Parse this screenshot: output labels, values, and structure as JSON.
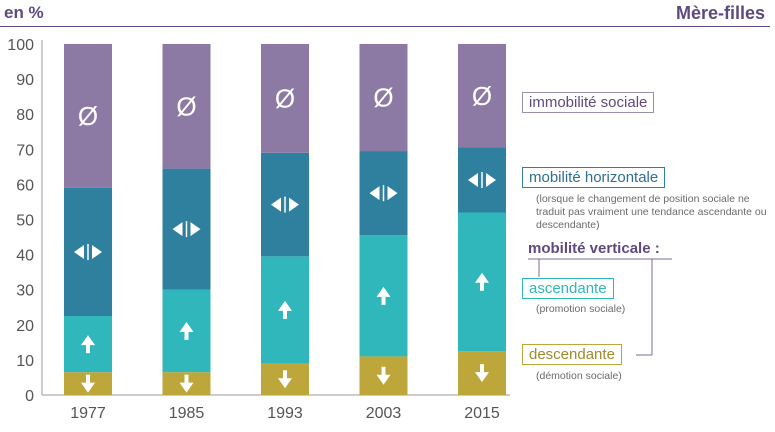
{
  "header": {
    "unit_label": "en %",
    "title": "Mère-filles"
  },
  "chart_data": {
    "type": "bar",
    "stacked": true,
    "categories": [
      "1977",
      "1985",
      "1993",
      "2003",
      "2015"
    ],
    "ylim": [
      0,
      100
    ],
    "yticks": [
      0,
      10,
      20,
      30,
      40,
      50,
      60,
      70,
      80,
      90,
      100
    ],
    "grid": false,
    "legend_position": "right",
    "series": [
      {
        "name": "descendante",
        "color": "#bda63a",
        "symbol": "down-arrow",
        "values": [
          6.5,
          6.5,
          9,
          11,
          12.5
        ]
      },
      {
        "name": "ascendante",
        "color": "#2fb7bb",
        "symbol": "up-arrow",
        "values": [
          16,
          23.5,
          30.5,
          34.5,
          39.5
        ]
      },
      {
        "name": "mobilité horizontale",
        "color": "#2f7f9f",
        "symbol": "double-arrow",
        "values": [
          36.5,
          34.5,
          29.5,
          24,
          18.5
        ]
      },
      {
        "name": "immobilité sociale",
        "color": "#8c7aa5",
        "symbol": "empty-set",
        "values": [
          41,
          35.5,
          31,
          30.5,
          29.5
        ]
      }
    ],
    "symbol_text": {
      "empty-set": "Ø"
    }
  },
  "legend": {
    "immobilite": {
      "label": "immobilité sociale",
      "color": "#5e4a7e",
      "border": "#9b8fb0"
    },
    "horizontale": {
      "label": "mobilité horizontale",
      "color": "#2f6f8f",
      "border": "#2f7f9f",
      "note": "(lorsque le changement de position sociale ne traduit pas vraiment une tendance ascendante ou descendante)"
    },
    "verticale_title": "mobilité verticale :",
    "ascendante": {
      "label": "ascendante",
      "note": "(promotion sociale)",
      "color": "#2fb7bb",
      "border": "#2fb7bb"
    },
    "descendante": {
      "label": "descendante",
      "note": "(démotion sociale)",
      "color": "#a08a2a",
      "border": "#bda63a"
    }
  }
}
